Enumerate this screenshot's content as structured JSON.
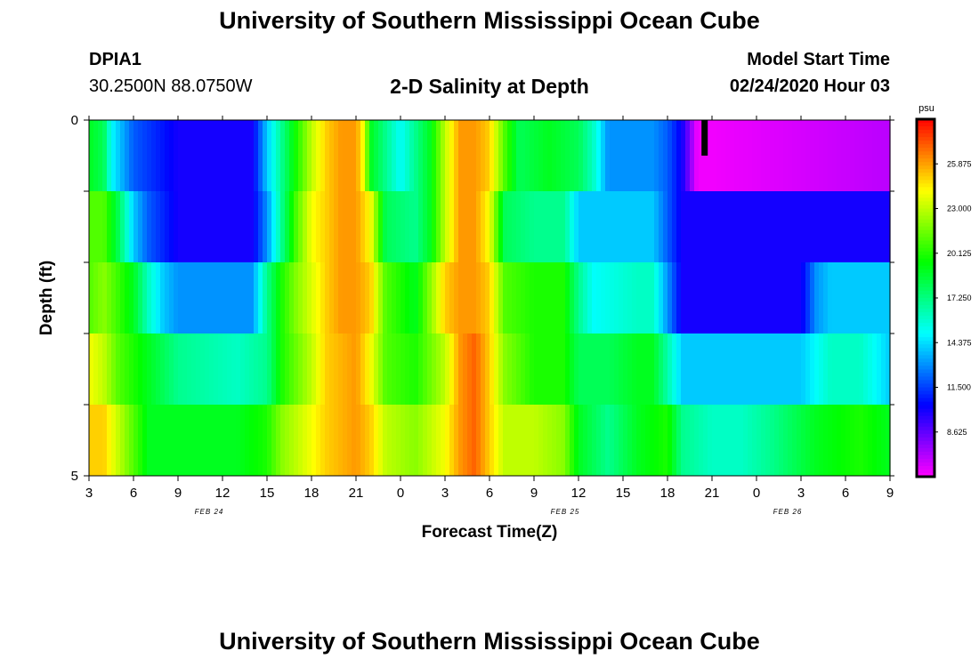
{
  "header": {
    "title": "University of Southern Mississippi Ocean Cube",
    "station_id": "DPIA1",
    "station_coords": "30.2500N 88.0750W",
    "plot_title": "2-D Salinity at Depth",
    "model_start_label": "Model Start Time",
    "model_start_value": "02/24/2020 Hour 03"
  },
  "footer": {
    "title": "University of Southern Mississippi Ocean Cube"
  },
  "chart_data": {
    "type": "heatmap",
    "title": "2-D Salinity at Depth",
    "xlabel": "Forecast Time(Z)",
    "ylabel": "Depth (ft)",
    "x_tick_labels": [
      "3",
      "6",
      "9",
      "12",
      "15",
      "18",
      "21",
      "0",
      "3",
      "6",
      "9",
      "12",
      "15",
      "18",
      "21",
      "0",
      "3",
      "6",
      "9"
    ],
    "date_labels": [
      {
        "label": "FEB 24",
        "tick_index": 3
      },
      {
        "label": "FEB 25",
        "tick_index": 11
      },
      {
        "label": "FEB 26",
        "tick_index": 16
      }
    ],
    "x_hours": [
      0,
      54
    ],
    "y_tick_labels": [
      "0",
      "5"
    ],
    "ylim": [
      0,
      5
    ],
    "depth_rows": [
      0,
      1,
      2,
      3,
      4,
      5
    ],
    "colorbar": {
      "unit": "psu",
      "range": [
        5.75,
        28.75
      ],
      "tick_labels": [
        "25.875",
        "23.000",
        "20.125",
        "17.250",
        "14.375",
        "11.500",
        "8.625"
      ],
      "tick_values": [
        25.875,
        23.0,
        20.125,
        17.25,
        14.375,
        11.5,
        8.625
      ]
    },
    "colors": {
      "low": "#ff00ff",
      "high": "#ff0000",
      "frame": "#000000"
    },
    "rows": [
      {
        "depth": 0.25,
        "values": [
          [
            0,
            19
          ],
          [
            1,
            18
          ],
          [
            1.5,
            15
          ],
          [
            3,
            12
          ],
          [
            6,
            10
          ],
          [
            11,
            10
          ],
          [
            12,
            14
          ],
          [
            13,
            17
          ],
          [
            14,
            20
          ],
          [
            15,
            23
          ],
          [
            16,
            25
          ],
          [
            17,
            26
          ],
          [
            18,
            26
          ],
          [
            18.5,
            24
          ],
          [
            19,
            19
          ],
          [
            20,
            17
          ],
          [
            21,
            15
          ],
          [
            22,
            17
          ],
          [
            23,
            19
          ],
          [
            24,
            23
          ],
          [
            25,
            26
          ],
          [
            26,
            26
          ],
          [
            27,
            25
          ],
          [
            28,
            21
          ],
          [
            29,
            18
          ],
          [
            31,
            19
          ],
          [
            33,
            18
          ],
          [
            34,
            16
          ],
          [
            35,
            13
          ],
          [
            36,
            13
          ],
          [
            38,
            13
          ],
          [
            39,
            12
          ],
          [
            40,
            10
          ],
          [
            41,
            6
          ],
          [
            42,
            6
          ],
          [
            54,
            7
          ]
        ]
      },
      {
        "depth": 1.0,
        "values": [
          [
            0,
            21
          ],
          [
            1,
            21
          ],
          [
            2,
            18
          ],
          [
            3,
            14
          ],
          [
            4,
            12
          ],
          [
            6,
            10
          ],
          [
            11,
            10
          ],
          [
            12,
            13
          ],
          [
            13,
            17
          ],
          [
            14,
            21
          ],
          [
            15,
            24
          ],
          [
            16,
            25
          ],
          [
            17,
            26
          ],
          [
            18,
            26
          ],
          [
            19,
            24
          ],
          [
            20,
            18
          ],
          [
            22,
            17
          ],
          [
            23,
            19
          ],
          [
            24,
            23
          ],
          [
            25,
            26
          ],
          [
            26,
            26
          ],
          [
            27,
            24
          ],
          [
            28,
            18
          ],
          [
            30,
            17
          ],
          [
            32,
            17
          ],
          [
            33,
            14
          ],
          [
            35,
            14
          ],
          [
            37,
            14
          ],
          [
            38,
            14
          ],
          [
            40,
            10
          ],
          [
            42,
            10
          ],
          [
            54,
            10
          ]
        ]
      },
      {
        "depth": 2.0,
        "values": [
          [
            0,
            21
          ],
          [
            1,
            22
          ],
          [
            3,
            19
          ],
          [
            4,
            16
          ],
          [
            5,
            14
          ],
          [
            6,
            13
          ],
          [
            11,
            13
          ],
          [
            12,
            17
          ],
          [
            13,
            20
          ],
          [
            14,
            22
          ],
          [
            16,
            25
          ],
          [
            17,
            26
          ],
          [
            18,
            26
          ],
          [
            19,
            25
          ],
          [
            20,
            21
          ],
          [
            22,
            19
          ],
          [
            23,
            22
          ],
          [
            24,
            25
          ],
          [
            25,
            26
          ],
          [
            26,
            26
          ],
          [
            27,
            25
          ],
          [
            28,
            21
          ],
          [
            30,
            20
          ],
          [
            32,
            20
          ],
          [
            33,
            17
          ],
          [
            34,
            15
          ],
          [
            37,
            16
          ],
          [
            38,
            16
          ],
          [
            40,
            10
          ],
          [
            43,
            10
          ],
          [
            48,
            10
          ],
          [
            49,
            13
          ],
          [
            50,
            14
          ],
          [
            54,
            14
          ]
        ]
      },
      {
        "depth": 3.0,
        "values": [
          [
            0,
            24
          ],
          [
            1,
            23
          ],
          [
            2,
            21
          ],
          [
            4,
            19
          ],
          [
            6,
            17
          ],
          [
            10,
            16
          ],
          [
            12,
            17
          ],
          [
            13,
            20
          ],
          [
            15,
            23
          ],
          [
            16,
            25
          ],
          [
            18,
            26
          ],
          [
            19,
            24
          ],
          [
            20,
            21
          ],
          [
            22,
            20
          ],
          [
            24,
            23
          ],
          [
            25,
            26
          ],
          [
            26,
            27
          ],
          [
            27,
            25
          ],
          [
            28,
            22
          ],
          [
            30,
            20
          ],
          [
            32,
            20
          ],
          [
            33,
            18
          ],
          [
            35,
            18
          ],
          [
            37,
            19
          ],
          [
            38,
            19
          ],
          [
            40,
            14
          ],
          [
            42,
            14
          ],
          [
            48,
            14
          ],
          [
            50,
            16
          ],
          [
            52,
            16
          ],
          [
            53,
            15
          ],
          [
            54,
            14
          ]
        ]
      },
      {
        "depth": 4.0,
        "values": [
          [
            0,
            25
          ],
          [
            1,
            25
          ],
          [
            2,
            23
          ],
          [
            3,
            21
          ],
          [
            4,
            19
          ],
          [
            10,
            19
          ],
          [
            12,
            20
          ],
          [
            13,
            22
          ],
          [
            15,
            24
          ],
          [
            16,
            25
          ],
          [
            18,
            26
          ],
          [
            19,
            25
          ],
          [
            20,
            23
          ],
          [
            22,
            22
          ],
          [
            24,
            24
          ],
          [
            25,
            26
          ],
          [
            26,
            27
          ],
          [
            27,
            25
          ],
          [
            28,
            23
          ],
          [
            30,
            23
          ],
          [
            32,
            22
          ],
          [
            33,
            19
          ],
          [
            35,
            17
          ],
          [
            37,
            19
          ],
          [
            39,
            20
          ],
          [
            40,
            17
          ],
          [
            42,
            16
          ],
          [
            44,
            16
          ],
          [
            46,
            17
          ],
          [
            49,
            19
          ],
          [
            52,
            20
          ],
          [
            54,
            19
          ]
        ]
      },
      {
        "depth": 4.75,
        "values": [
          [
            0,
            27
          ],
          [
            1,
            27
          ],
          [
            2,
            26
          ],
          [
            3,
            24
          ],
          [
            4,
            22
          ],
          [
            5,
            21
          ],
          [
            6,
            20
          ],
          [
            9,
            20
          ],
          [
            10,
            21
          ],
          [
            12,
            22
          ],
          [
            14,
            24
          ],
          [
            16,
            26
          ],
          [
            18,
            27
          ],
          [
            20,
            25
          ],
          [
            22,
            23
          ],
          [
            24,
            25
          ],
          [
            26,
            26
          ],
          [
            27,
            25
          ],
          [
            28,
            24
          ],
          [
            30,
            23
          ],
          [
            32,
            22
          ],
          [
            33,
            18
          ],
          [
            35,
            18
          ],
          [
            37,
            19
          ],
          [
            39,
            20
          ],
          [
            41,
            18
          ],
          [
            44,
            18
          ],
          [
            46,
            19
          ],
          [
            47,
            20
          ],
          [
            48,
            21
          ],
          [
            50,
            22
          ],
          [
            52,
            21
          ],
          [
            54,
            20
          ]
        ]
      }
    ],
    "markers": [
      {
        "type": "current-time-bar",
        "x_hour": 41.5,
        "depth_range": [
          0,
          0.5
        ]
      }
    ]
  }
}
